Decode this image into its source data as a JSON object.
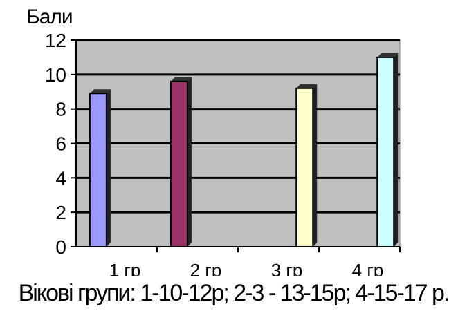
{
  "chart_data": {
    "type": "bar",
    "title": "",
    "ylabel": "Бали",
    "xlabel": "Вікові групи: 1-10-12р; 2-3  - 13-15р; 4-15-17 р.",
    "categories": [
      "1 гр",
      "2 гр",
      "3 гр",
      "4 гр"
    ],
    "values": [
      8.9,
      9.6,
      9.2,
      11.0
    ],
    "colors": [
      "#9999ff",
      "#993366",
      "#ffffcc",
      "#ccffff"
    ],
    "ylim": [
      0,
      12
    ],
    "yticks": [
      0,
      2,
      4,
      6,
      8,
      10,
      12
    ],
    "grid": true,
    "plot_background": "#c0c0c0"
  }
}
